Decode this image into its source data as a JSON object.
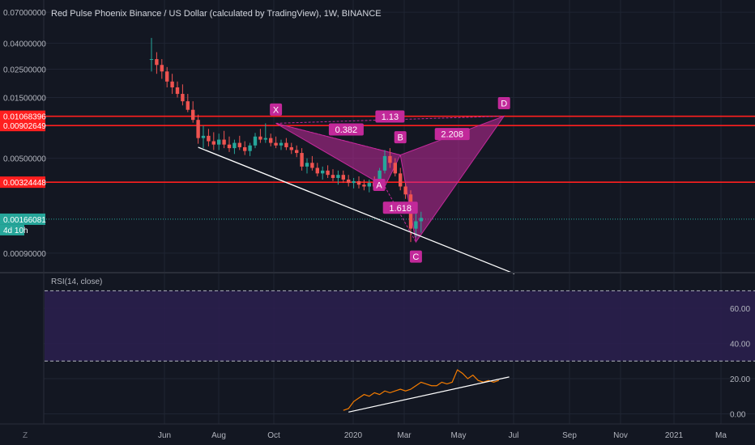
{
  "chart_title": "Red Pulse Phoenix Binance / US Dollar (calculated by TradingView), 1W, BINANCE",
  "colors": {
    "background": "#131722",
    "grid": "#1f2433",
    "up": "#26a69a",
    "down": "#ef5350",
    "level": "#ff1f1f",
    "pattern": "#c2299a",
    "rsi_line": "#f57c00",
    "rsi_band": "#2a1f4d",
    "trend": "#ffffff"
  },
  "price_axis": {
    "ticks": [
      "0.07000000",
      "0.04000000",
      "0.02500000",
      "0.01500000",
      "0.00500000",
      "0.00090000"
    ],
    "tick_values": [
      0.07,
      0.04,
      0.025,
      0.015,
      0.005,
      0.0009
    ],
    "scale": "log",
    "ylim": [
      0.0007,
      0.08
    ]
  },
  "level_labels": [
    {
      "text": "0.01068396",
      "value": 0.01068396
    },
    {
      "text": "0.00902649",
      "value": 0.00902649
    },
    {
      "text": "0.00324448",
      "value": 0.00324448
    }
  ],
  "current_price": {
    "text": "0.00166081",
    "value": 0.00166081,
    "countdown": "4d 10h"
  },
  "time_axis": {
    "ticks": [
      "Jun",
      "Aug",
      "Oct",
      "2020",
      "Mar",
      "May",
      "Jul",
      "Sep",
      "Nov",
      "2021",
      "Ma"
    ]
  },
  "chart_data": {
    "type": "candlestick",
    "scale": "log",
    "candles": [
      [
        0.03,
        0.044,
        0.024,
        0.03
      ],
      [
        0.03,
        0.034,
        0.023,
        0.027
      ],
      [
        0.027,
        0.03,
        0.021,
        0.024
      ],
      [
        0.024,
        0.026,
        0.018,
        0.02
      ],
      [
        0.02,
        0.023,
        0.016,
        0.018
      ],
      [
        0.018,
        0.02,
        0.015,
        0.016
      ],
      [
        0.016,
        0.019,
        0.013,
        0.014
      ],
      [
        0.014,
        0.016,
        0.0115,
        0.012
      ],
      [
        0.012,
        0.014,
        0.0095,
        0.01
      ],
      [
        0.01,
        0.011,
        0.0065,
        0.0072
      ],
      [
        0.0072,
        0.009,
        0.006,
        0.0075
      ],
      [
        0.0075,
        0.0085,
        0.0062,
        0.0068
      ],
      [
        0.0068,
        0.008,
        0.0058,
        0.0064
      ],
      [
        0.0064,
        0.0078,
        0.0058,
        0.007
      ],
      [
        0.007,
        0.0082,
        0.006,
        0.0064
      ],
      [
        0.0064,
        0.0074,
        0.0056,
        0.006
      ],
      [
        0.006,
        0.007,
        0.0054,
        0.0066
      ],
      [
        0.0066,
        0.0075,
        0.0058,
        0.0061
      ],
      [
        0.0061,
        0.0068,
        0.0053,
        0.0057
      ],
      [
        0.0057,
        0.0066,
        0.0052,
        0.0063
      ],
      [
        0.0063,
        0.0079,
        0.006,
        0.0074
      ],
      [
        0.0074,
        0.0085,
        0.0066,
        0.007
      ],
      [
        0.007,
        0.0094,
        0.0066,
        0.0072
      ],
      [
        0.0072,
        0.0078,
        0.0062,
        0.0066
      ],
      [
        0.0066,
        0.0074,
        0.006,
        0.0063
      ],
      [
        0.0063,
        0.007,
        0.0058,
        0.0066
      ],
      [
        0.0066,
        0.0072,
        0.0058,
        0.0061
      ],
      [
        0.0061,
        0.0066,
        0.0054,
        0.0058
      ],
      [
        0.0058,
        0.0063,
        0.0051,
        0.0055
      ],
      [
        0.0055,
        0.006,
        0.004,
        0.0043
      ],
      [
        0.0043,
        0.005,
        0.0038,
        0.0046
      ],
      [
        0.0046,
        0.0052,
        0.004,
        0.0042
      ],
      [
        0.0042,
        0.0046,
        0.0036,
        0.0038
      ],
      [
        0.0038,
        0.0043,
        0.0034,
        0.004
      ],
      [
        0.004,
        0.0044,
        0.0035,
        0.0037
      ],
      [
        0.0037,
        0.0041,
        0.0033,
        0.0035
      ],
      [
        0.0035,
        0.004,
        0.0031,
        0.0037
      ],
      [
        0.0037,
        0.004,
        0.0032,
        0.0034
      ],
      [
        0.0034,
        0.0037,
        0.003,
        0.0032
      ],
      [
        0.0032,
        0.0035,
        0.0029,
        0.0033
      ],
      [
        0.0033,
        0.0036,
        0.0029,
        0.0031
      ],
      [
        0.0031,
        0.0034,
        0.0028,
        0.003
      ],
      [
        0.003,
        0.0034,
        0.0027,
        0.0032
      ],
      [
        0.0032,
        0.0036,
        0.0029,
        0.003
      ],
      [
        0.003,
        0.0042,
        0.0029,
        0.004
      ],
      [
        0.004,
        0.0058,
        0.0038,
        0.0052
      ],
      [
        0.0052,
        0.006,
        0.0042,
        0.0046
      ],
      [
        0.0046,
        0.005,
        0.0036,
        0.0038
      ],
      [
        0.0038,
        0.0042,
        0.0028,
        0.003
      ],
      [
        0.003,
        0.0032,
        0.0024,
        0.0026
      ],
      [
        0.0026,
        0.0028,
        0.0011,
        0.0014
      ],
      [
        0.0014,
        0.0019,
        0.0012,
        0.0016
      ],
      [
        0.0016,
        0.0019,
        0.0013,
        0.0017
      ]
    ],
    "trendline": {
      "from": {
        "candle": 9,
        "price": 0.0061
      },
      "to": {
        "candle": 70,
        "price": 0.00062
      }
    },
    "horizontal_levels": [
      0.01068396,
      0.00902649,
      0.00324448
    ],
    "harmonic_pattern": {
      "points": [
        {
          "label": "X",
          "candle": 24,
          "price": 0.0094
        },
        {
          "label": "A",
          "candle": 45,
          "price": 0.003
        },
        {
          "label": "B",
          "candle": 48,
          "price": 0.0053
        },
        {
          "label": "C",
          "candle": 51,
          "price": 0.0011
        },
        {
          "label": "D",
          "candle": 68,
          "price": 0.0107
        }
      ],
      "ratios": [
        "0.382",
        "1.13",
        "2.208",
        "1.618"
      ]
    }
  },
  "rsi_panel": {
    "title": "RSI(14, close)",
    "ticks": [
      "60.00",
      "40.00",
      "20.00",
      "0.00"
    ],
    "tick_values": [
      60,
      40,
      20,
      0
    ],
    "band": [
      30,
      70
    ],
    "ylim": [
      -3,
      78
    ],
    "series": [
      {
        "candle": 37,
        "value": 2
      },
      {
        "candle": 38,
        "value": 3
      },
      {
        "candle": 39,
        "value": 7
      },
      {
        "candle": 40,
        "value": 9
      },
      {
        "candle": 41,
        "value": 11
      },
      {
        "candle": 42,
        "value": 10
      },
      {
        "candle": 43,
        "value": 12
      },
      {
        "candle": 44,
        "value": 11
      },
      {
        "candle": 45,
        "value": 13
      },
      {
        "candle": 46,
        "value": 12
      },
      {
        "candle": 47,
        "value": 13
      },
      {
        "candle": 48,
        "value": 14
      },
      {
        "candle": 49,
        "value": 13
      },
      {
        "candle": 50,
        "value": 14
      },
      {
        "candle": 51,
        "value": 16
      },
      {
        "candle": 52,
        "value": 18
      },
      {
        "candle": 53,
        "value": 17
      },
      {
        "candle": 54,
        "value": 16
      },
      {
        "candle": 55,
        "value": 16
      },
      {
        "candle": 56,
        "value": 18
      },
      {
        "candle": 57,
        "value": 17
      },
      {
        "candle": 58,
        "value": 18
      },
      {
        "candle": 59,
        "value": 25
      },
      {
        "candle": 60,
        "value": 23
      },
      {
        "candle": 61,
        "value": 20
      },
      {
        "candle": 62,
        "value": 22
      },
      {
        "candle": 63,
        "value": 19
      },
      {
        "candle": 64,
        "value": 18
      },
      {
        "candle": 65,
        "value": 19
      },
      {
        "candle": 66,
        "value": 18
      },
      {
        "candle": 67,
        "value": 19
      }
    ],
    "trendline": {
      "from": {
        "candle": 38,
        "value": 1
      },
      "to": {
        "candle": 69,
        "value": 21
      }
    }
  },
  "footer": {
    "timezone_button": "Z"
  }
}
